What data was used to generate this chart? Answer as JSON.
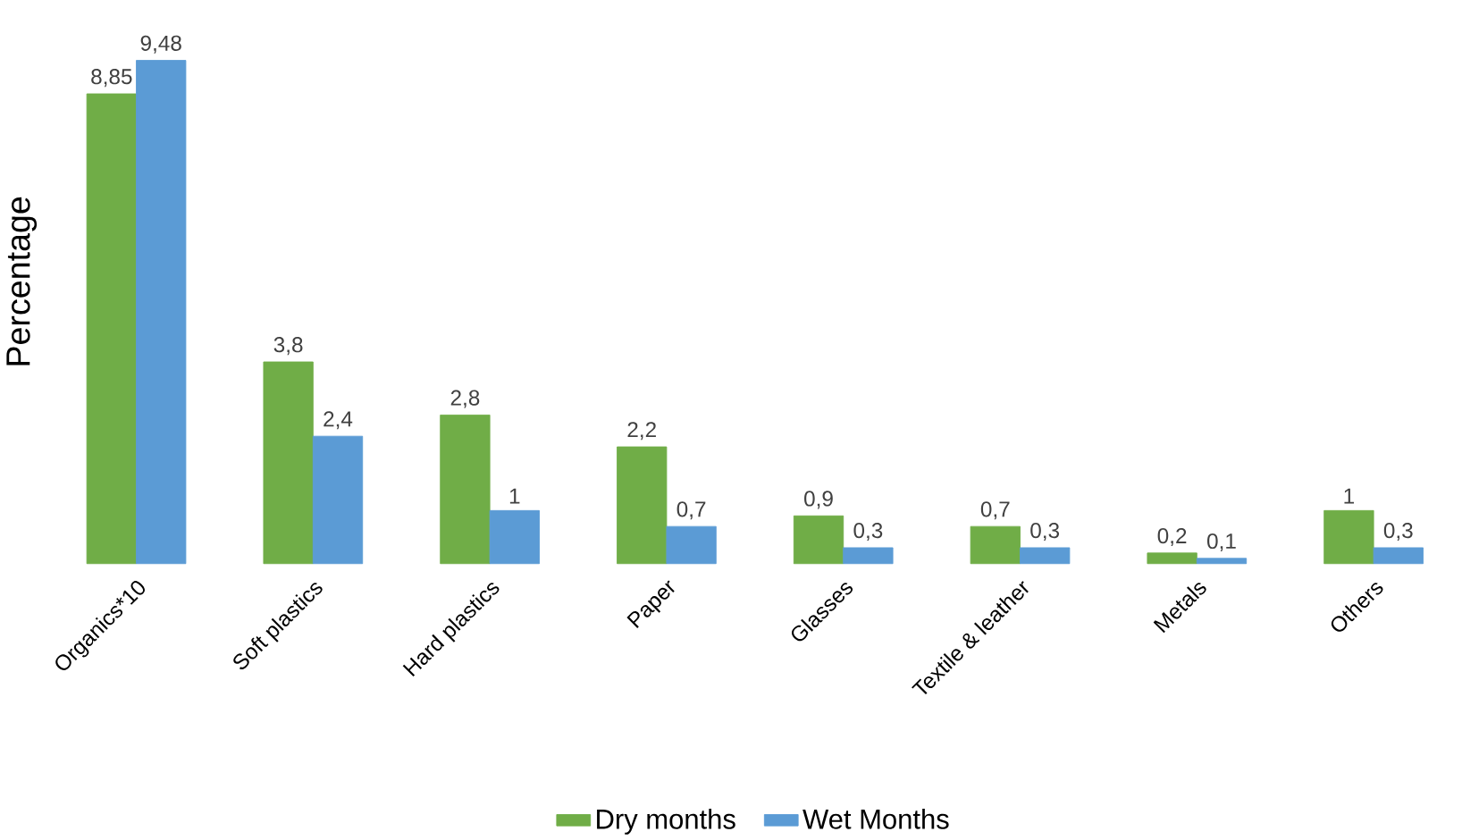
{
  "chart_data": {
    "type": "bar",
    "ylabel": "Percentage",
    "legend": "bottom",
    "categories": [
      "Organics*10",
      "Soft plastics",
      "Hard plastics",
      "Paper",
      "Glasses",
      "Textile & leather",
      "Metals",
      "Others"
    ],
    "series": [
      {
        "name": "Dry months",
        "color": "#70ad47",
        "values": [
          8.85,
          3.8,
          2.8,
          2.2,
          0.9,
          0.7,
          0.2,
          1
        ],
        "value_labels": [
          "8,85",
          "3,8",
          "2,8",
          "2,2",
          "0,9",
          "0,7",
          "0,2",
          "1"
        ]
      },
      {
        "name": "Wet Months",
        "color": "#5b9bd5",
        "values": [
          9.48,
          2.4,
          1,
          0.7,
          0.3,
          0.3,
          0.1,
          0.3
        ],
        "value_labels": [
          "9,48",
          "2,4",
          "1",
          "0,7",
          "0,3",
          "0,3",
          "0,1",
          "0,3"
        ]
      }
    ]
  }
}
